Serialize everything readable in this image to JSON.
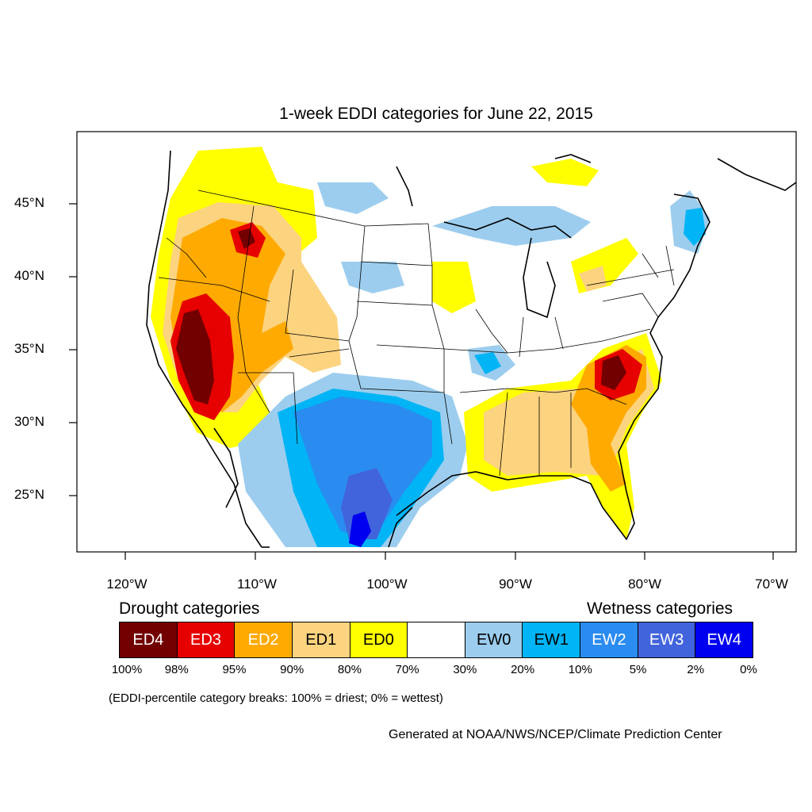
{
  "title": "1-week EDDI categories for June 22, 2015",
  "lat_labels": [
    "45°N",
    "40°N",
    "35°N",
    "30°N",
    "25°N"
  ],
  "lon_labels": [
    "120°W",
    "110°W",
    "100°W",
    "90°W",
    "80°W",
    "70°W"
  ],
  "legend": {
    "drought_heading": "Drought categories",
    "wetness_heading": "Wetness categories",
    "categories": [
      {
        "label": "ED4",
        "color": "#730000",
        "text_color": "#ffffff"
      },
      {
        "label": "ED3",
        "color": "#e60000",
        "text_color": "#ffffff"
      },
      {
        "label": "ED2",
        "color": "#ffaa00",
        "text_color": "#ffffff"
      },
      {
        "label": "ED1",
        "color": "#fcd37f",
        "text_color": "#000000"
      },
      {
        "label": "ED0",
        "color": "#ffff00",
        "text_color": "#000000"
      },
      {
        "label": "",
        "color": "#ffffff",
        "text_color": "#000000"
      },
      {
        "label": "EW0",
        "color": "#9ccdee",
        "text_color": "#000000"
      },
      {
        "label": "EW1",
        "color": "#00b4f5",
        "text_color": "#000000"
      },
      {
        "label": "EW2",
        "color": "#2a8cf0",
        "text_color": "#ffffff"
      },
      {
        "label": "EW3",
        "color": "#4164dc",
        "text_color": "#ffffff"
      },
      {
        "label": "EW4",
        "color": "#0000f0",
        "text_color": "#ffffff"
      }
    ],
    "breaks": [
      "100%",
      "98%",
      "95%",
      "90%",
      "80%",
      "70%",
      "30%",
      "20%",
      "10%",
      "5%",
      "2%",
      "0%"
    ]
  },
  "note": "(EDDI-percentile category breaks: 100% = driest; 0% = wettest)",
  "credit": "Generated at NOAA/NWS/NCEP/Climate Prediction Center"
}
